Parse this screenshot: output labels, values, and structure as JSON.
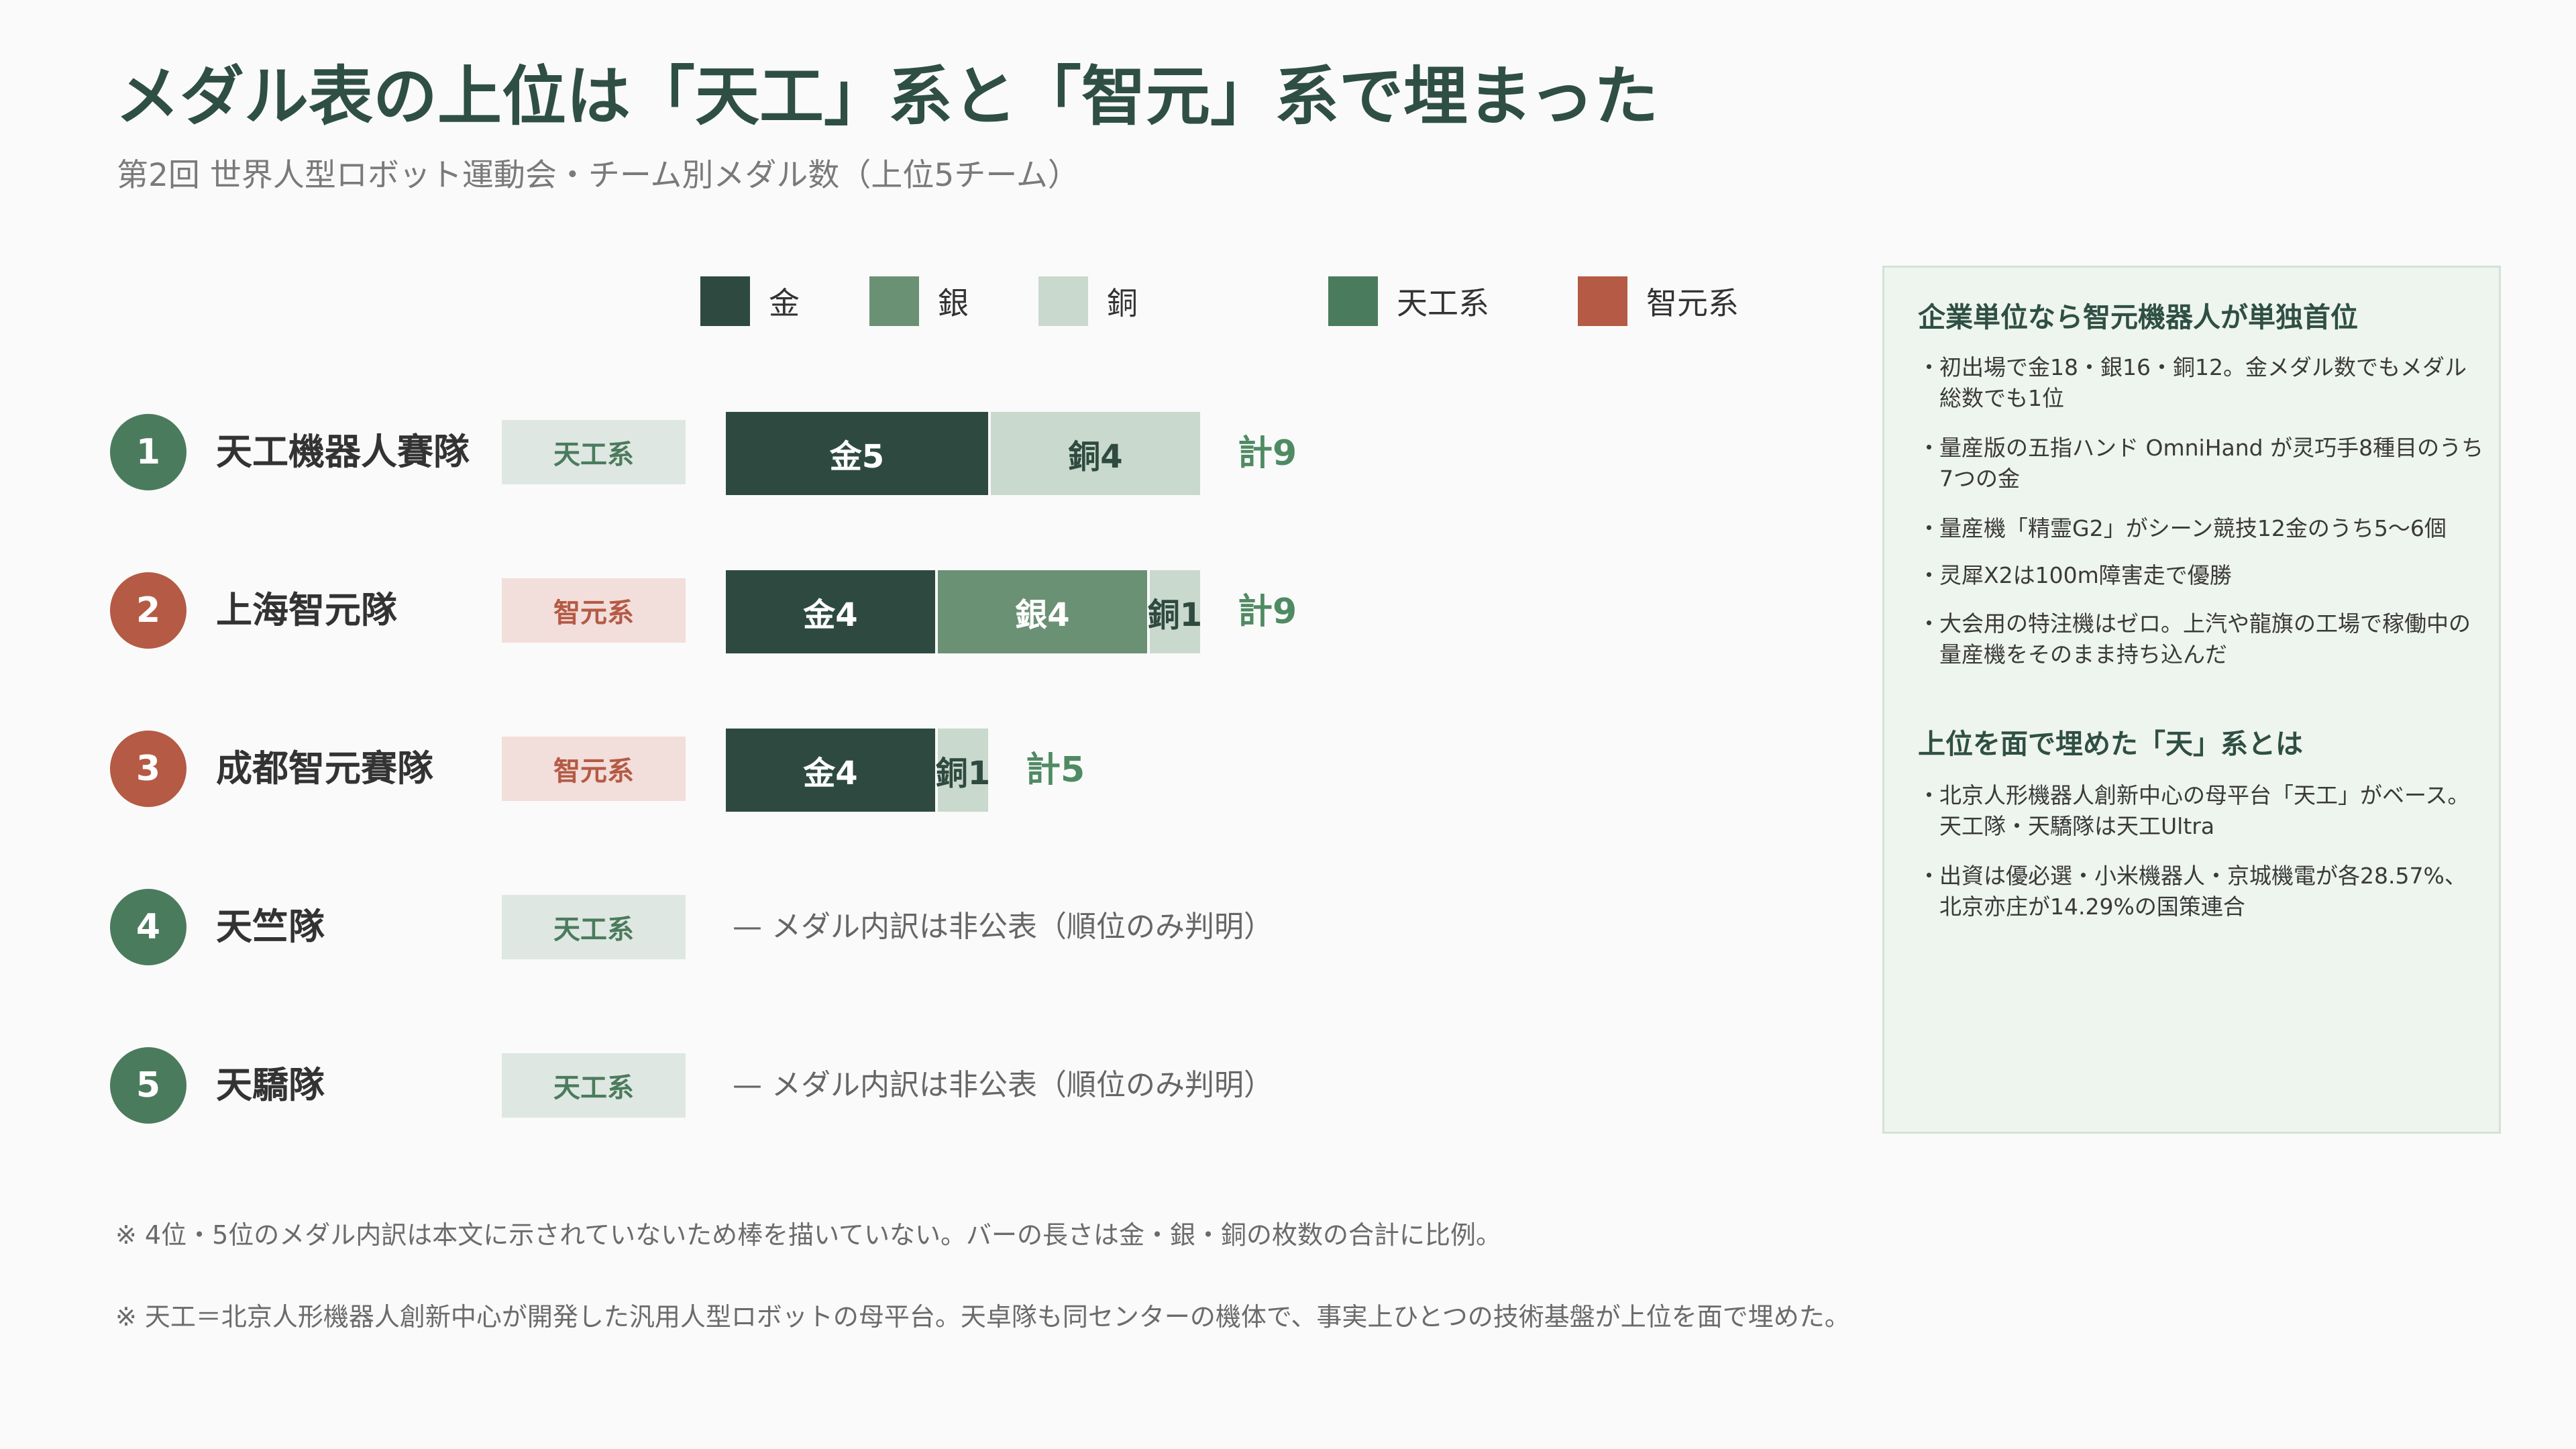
{
  "header": {
    "title": "メダル表の上位は「天工」系と「智元」系で埋まった",
    "subtitle": "第2回 世界人型ロボット運動会・チーム別メダル数（上位5チーム）"
  },
  "legend": {
    "gold": "金",
    "silver": "銀",
    "bronze": "銅",
    "tiangong": "天工系",
    "zhiyuan": "智元系"
  },
  "colors": {
    "gold": "#2e4a40",
    "silver": "#6b9174",
    "bronze": "#c9d9cd",
    "tiangong": "#4b7b5d",
    "zhiyuan": "#b55a44"
  },
  "chart_data": {
    "type": "bar",
    "orientation": "horizontal-stacked",
    "categories": [
      "天工機器人賽隊",
      "上海智元隊",
      "成都智元賽隊",
      "天竺隊",
      "天驕隊"
    ],
    "series": [
      {
        "name": "金",
        "values": [
          5,
          4,
          4,
          null,
          null
        ]
      },
      {
        "name": "銀",
        "values": [
          0,
          4,
          0,
          null,
          null
        ]
      },
      {
        "name": "銅",
        "values": [
          4,
          1,
          1,
          null,
          null
        ]
      }
    ],
    "totals": [
      9,
      9,
      5,
      null,
      null
    ]
  },
  "rows": [
    {
      "rank": "1",
      "name": "天工機器人賽隊",
      "group": "天工系",
      "group_key": "tiangong",
      "gold": 5,
      "silver": 0,
      "bronze": 4,
      "gold_label": "金5",
      "silver_label": "",
      "bronze_label": "銅4",
      "total_label": "計9",
      "note": ""
    },
    {
      "rank": "2",
      "name": "上海智元隊",
      "group": "智元系",
      "group_key": "zhiyuan",
      "gold": 4,
      "silver": 4,
      "bronze": 1,
      "gold_label": "金4",
      "silver_label": "銀4",
      "bronze_label": "銅1",
      "total_label": "計9",
      "note": ""
    },
    {
      "rank": "3",
      "name": "成都智元賽隊",
      "group": "智元系",
      "group_key": "zhiyuan",
      "gold": 4,
      "silver": 0,
      "bronze": 1,
      "gold_label": "金4",
      "silver_label": "",
      "bronze_label": "銅1",
      "total_label": "計5",
      "note": ""
    },
    {
      "rank": "4",
      "name": "天竺隊",
      "group": "天工系",
      "group_key": "tiangong",
      "gold": null,
      "silver": null,
      "bronze": null,
      "gold_label": "",
      "silver_label": "",
      "bronze_label": "",
      "total_label": "",
      "note": "— メダル内訳は非公表（順位のみ判明）"
    },
    {
      "rank": "5",
      "name": "天驕隊",
      "group": "天工系",
      "group_key": "tiangong",
      "gold": null,
      "silver": null,
      "bronze": null,
      "gold_label": "",
      "silver_label": "",
      "bronze_label": "",
      "total_label": "",
      "note": "— メダル内訳は非公表（順位のみ判明）"
    }
  ],
  "notes": [
    "※ 4位・5位のメダル内訳は本文に示されていないため棒を描いていない。バーの長さは金・銀・銅の枚数の合計に比例。",
    "※ 天工＝北京人形機器人創新中心が開発した汎用人型ロボットの母平台。天卓隊も同センターの機体で、事実上ひとつの技術基盤が上位を面で埋めた。"
  ],
  "sidebar": {
    "heading1": "企業単位なら智元機器人が単独首位",
    "items1": [
      "初出場で金18・銀16・銅12。金メダル数でもメダル総数でも1位",
      "量産版の五指ハンド OmniHand が灵巧手8種目のうち7つの金",
      "量産機「精霊G2」がシーン競技12金のうち5〜6個",
      "灵犀X2は100m障害走で優勝",
      "大会用の特注機はゼロ。上汽や龍旗の工場で稼働中の量産機をそのまま持ち込んだ"
    ],
    "heading2": "上位を面で埋めた「天」系とは",
    "items2": [
      "北京人形機器人創新中心の母平台「天工」がベース。天工隊・天驕隊は天工Ultra",
      "出資は優必選・小米機器人・京城機電が各28.57%、北京亦庄が14.29%の国策連合"
    ],
    "bullet": "・"
  }
}
